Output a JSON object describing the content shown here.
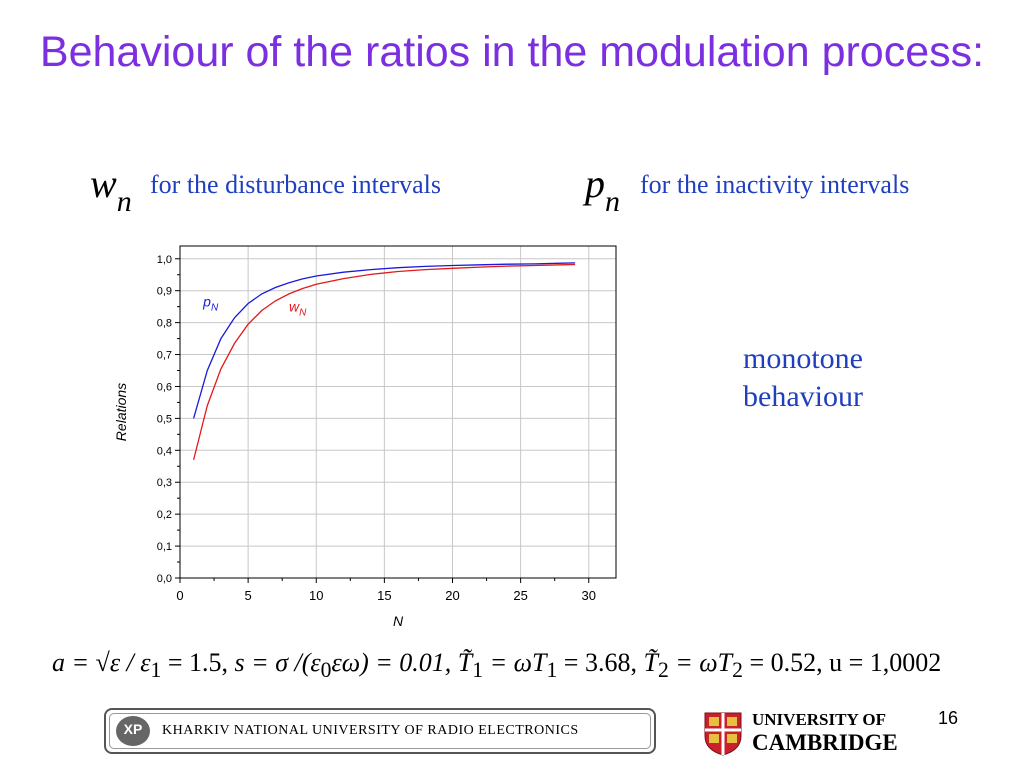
{
  "slide": {
    "title": "Behaviour of the ratios in the modulation process:",
    "w_symbol": "w",
    "w_sub": "n",
    "w_desc": "for the disturbance intervals",
    "p_symbol": "p",
    "p_sub": "n",
    "p_desc": "for the inactivity intervals",
    "note_line1": "monotone",
    "note_line2": "behaviour",
    "formula": {
      "a": "a = √ε / ε",
      "a_sub": "1",
      "a_val": " = 1.5, ",
      "s": "s = σ /(ε",
      "s_sub": "0",
      "s_val": "εω) = 0.01, ",
      "t1": "T̃",
      "t1_sub": "1",
      "t1_mid": " = ωT",
      "t1_sub2": "1",
      "t1_val": " = 3.68, ",
      "t2": "T̃",
      "t2_sub": "2",
      "t2_mid": " = ωT",
      "t2_sub2": "2",
      "t2_val": " = 0.52,  u = 1,0002"
    },
    "page_number": "16",
    "footer_left": "KHARKIV  NATIONAL  UNIVERSITY  OF  RADIO  ELECTRONICS",
    "footer_left_logo": "ΧΡ",
    "footer_right_line1": "UNIVERSITY OF",
    "footer_right_line2": "CAMBRIDGE"
  },
  "chart_data": {
    "type": "line",
    "xlabel": "N",
    "ylabel": "Relations",
    "xlim": [
      0,
      32
    ],
    "ylim": [
      0.0,
      1.04
    ],
    "xticks": [
      0,
      5,
      10,
      15,
      20,
      25,
      30
    ],
    "yticks": [
      "0,0",
      "0,1",
      "0,2",
      "0,3",
      "0,4",
      "0,5",
      "0,6",
      "0,7",
      "0,8",
      "0,9",
      "1,0"
    ],
    "grid": true,
    "series": [
      {
        "name": "p",
        "name_sub": "N",
        "color": "#1a1adb",
        "x": [
          1,
          2,
          3,
          4,
          5,
          6,
          7,
          8,
          9,
          10,
          12,
          14,
          16,
          18,
          20,
          22,
          24,
          26,
          28,
          29
        ],
        "values": [
          0.5,
          0.65,
          0.75,
          0.815,
          0.86,
          0.89,
          0.91,
          0.925,
          0.937,
          0.946,
          0.958,
          0.966,
          0.972,
          0.976,
          0.979,
          0.981,
          0.983,
          0.984,
          0.986,
          0.987
        ]
      },
      {
        "name": "w",
        "name_sub": "N",
        "color": "#e21a1a",
        "x": [
          1,
          2,
          3,
          4,
          5,
          6,
          7,
          8,
          9,
          10,
          12,
          14,
          16,
          18,
          20,
          22,
          24,
          26,
          28,
          29
        ],
        "values": [
          0.37,
          0.54,
          0.655,
          0.735,
          0.795,
          0.838,
          0.868,
          0.89,
          0.907,
          0.92,
          0.938,
          0.951,
          0.96,
          0.966,
          0.97,
          0.974,
          0.977,
          0.979,
          0.981,
          0.982
        ]
      }
    ]
  }
}
